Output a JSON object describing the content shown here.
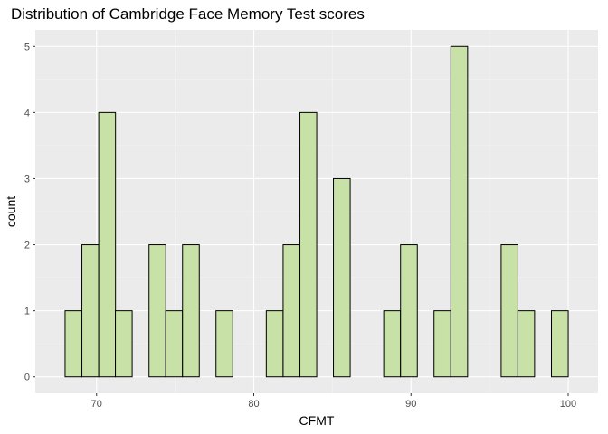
{
  "chart_data": {
    "type": "bar",
    "title": "Distribution of Cambridge Face Memory Test scores",
    "xlabel": "CFMT",
    "ylabel": "count",
    "xlim": [
      66.1,
      101.9
    ],
    "ylim": [
      -0.25,
      5.25
    ],
    "x_ticks": [
      70,
      80,
      90,
      100
    ],
    "y_ticks": [
      0,
      1,
      2,
      3,
      4,
      5
    ],
    "grid": true,
    "legend": "none",
    "bin_width": 1.067,
    "bins": [
      {
        "x": 68.53,
        "count": 1
      },
      {
        "x": 69.6,
        "count": 2
      },
      {
        "x": 70.67,
        "count": 4
      },
      {
        "x": 71.73,
        "count": 1
      },
      {
        "x": 72.8,
        "count": 0
      },
      {
        "x": 73.87,
        "count": 2
      },
      {
        "x": 74.93,
        "count": 1
      },
      {
        "x": 76.0,
        "count": 2
      },
      {
        "x": 77.07,
        "count": 0
      },
      {
        "x": 78.13,
        "count": 1
      },
      {
        "x": 79.2,
        "count": 0
      },
      {
        "x": 80.27,
        "count": 0
      },
      {
        "x": 81.33,
        "count": 1
      },
      {
        "x": 82.4,
        "count": 2
      },
      {
        "x": 83.47,
        "count": 4
      },
      {
        "x": 84.53,
        "count": 0
      },
      {
        "x": 85.6,
        "count": 3
      },
      {
        "x": 86.67,
        "count": 0
      },
      {
        "x": 87.73,
        "count": 0
      },
      {
        "x": 88.8,
        "count": 1
      },
      {
        "x": 89.87,
        "count": 2
      },
      {
        "x": 90.93,
        "count": 0
      },
      {
        "x": 92.0,
        "count": 1
      },
      {
        "x": 93.07,
        "count": 5
      },
      {
        "x": 94.13,
        "count": 0
      },
      {
        "x": 95.2,
        "count": 0
      },
      {
        "x": 96.27,
        "count": 2
      },
      {
        "x": 97.33,
        "count": 1
      },
      {
        "x": 98.4,
        "count": 0
      },
      {
        "x": 99.47,
        "count": 1
      }
    ],
    "colors": {
      "bar_fill": "#c7e1a6",
      "bar_stroke": "#000000",
      "panel_background": "#ebebeb",
      "grid_major": "#ffffff",
      "grid_minor": "#f5f5f5",
      "tick_label": "#4d4d4d"
    }
  }
}
